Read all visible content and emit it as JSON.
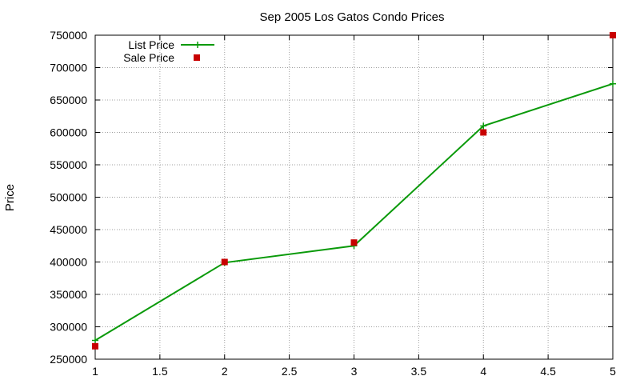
{
  "chart_data": {
    "type": "line",
    "title": "Sep 2005 Los Gatos Condo Prices",
    "xlabel": "",
    "ylabel": "Price",
    "xlim": [
      1,
      5
    ],
    "ylim": [
      250000,
      750000
    ],
    "x_ticks": [
      1,
      1.5,
      2,
      2.5,
      3,
      3.5,
      4,
      4.5,
      5
    ],
    "y_ticks": [
      250000,
      300000,
      350000,
      400000,
      450000,
      500000,
      550000,
      600000,
      650000,
      700000,
      750000
    ],
    "x_tick_labels": [
      "1",
      "1.5",
      "2",
      "2.5",
      "3",
      "3.5",
      "4",
      "4.5",
      "5"
    ],
    "y_tick_labels": [
      "250000",
      "300000",
      "350000",
      "400000",
      "450000",
      "500000",
      "550000",
      "600000",
      "650000",
      "700000",
      "750000"
    ],
    "grid": true,
    "legend_position": "top-left",
    "series": [
      {
        "name": "List Price",
        "style": "lines+points",
        "marker": "plus",
        "color": "#0a9a0a",
        "x": [
          1,
          2,
          3,
          4,
          5
        ],
        "y": [
          279000,
          399000,
          425000,
          610000,
          675000
        ]
      },
      {
        "name": "Sale Price",
        "style": "points",
        "marker": "square",
        "color": "#c80000",
        "x": [
          1,
          2,
          3,
          4,
          5
        ],
        "y": [
          270000,
          400000,
          430000,
          600000,
          750000
        ]
      }
    ]
  }
}
